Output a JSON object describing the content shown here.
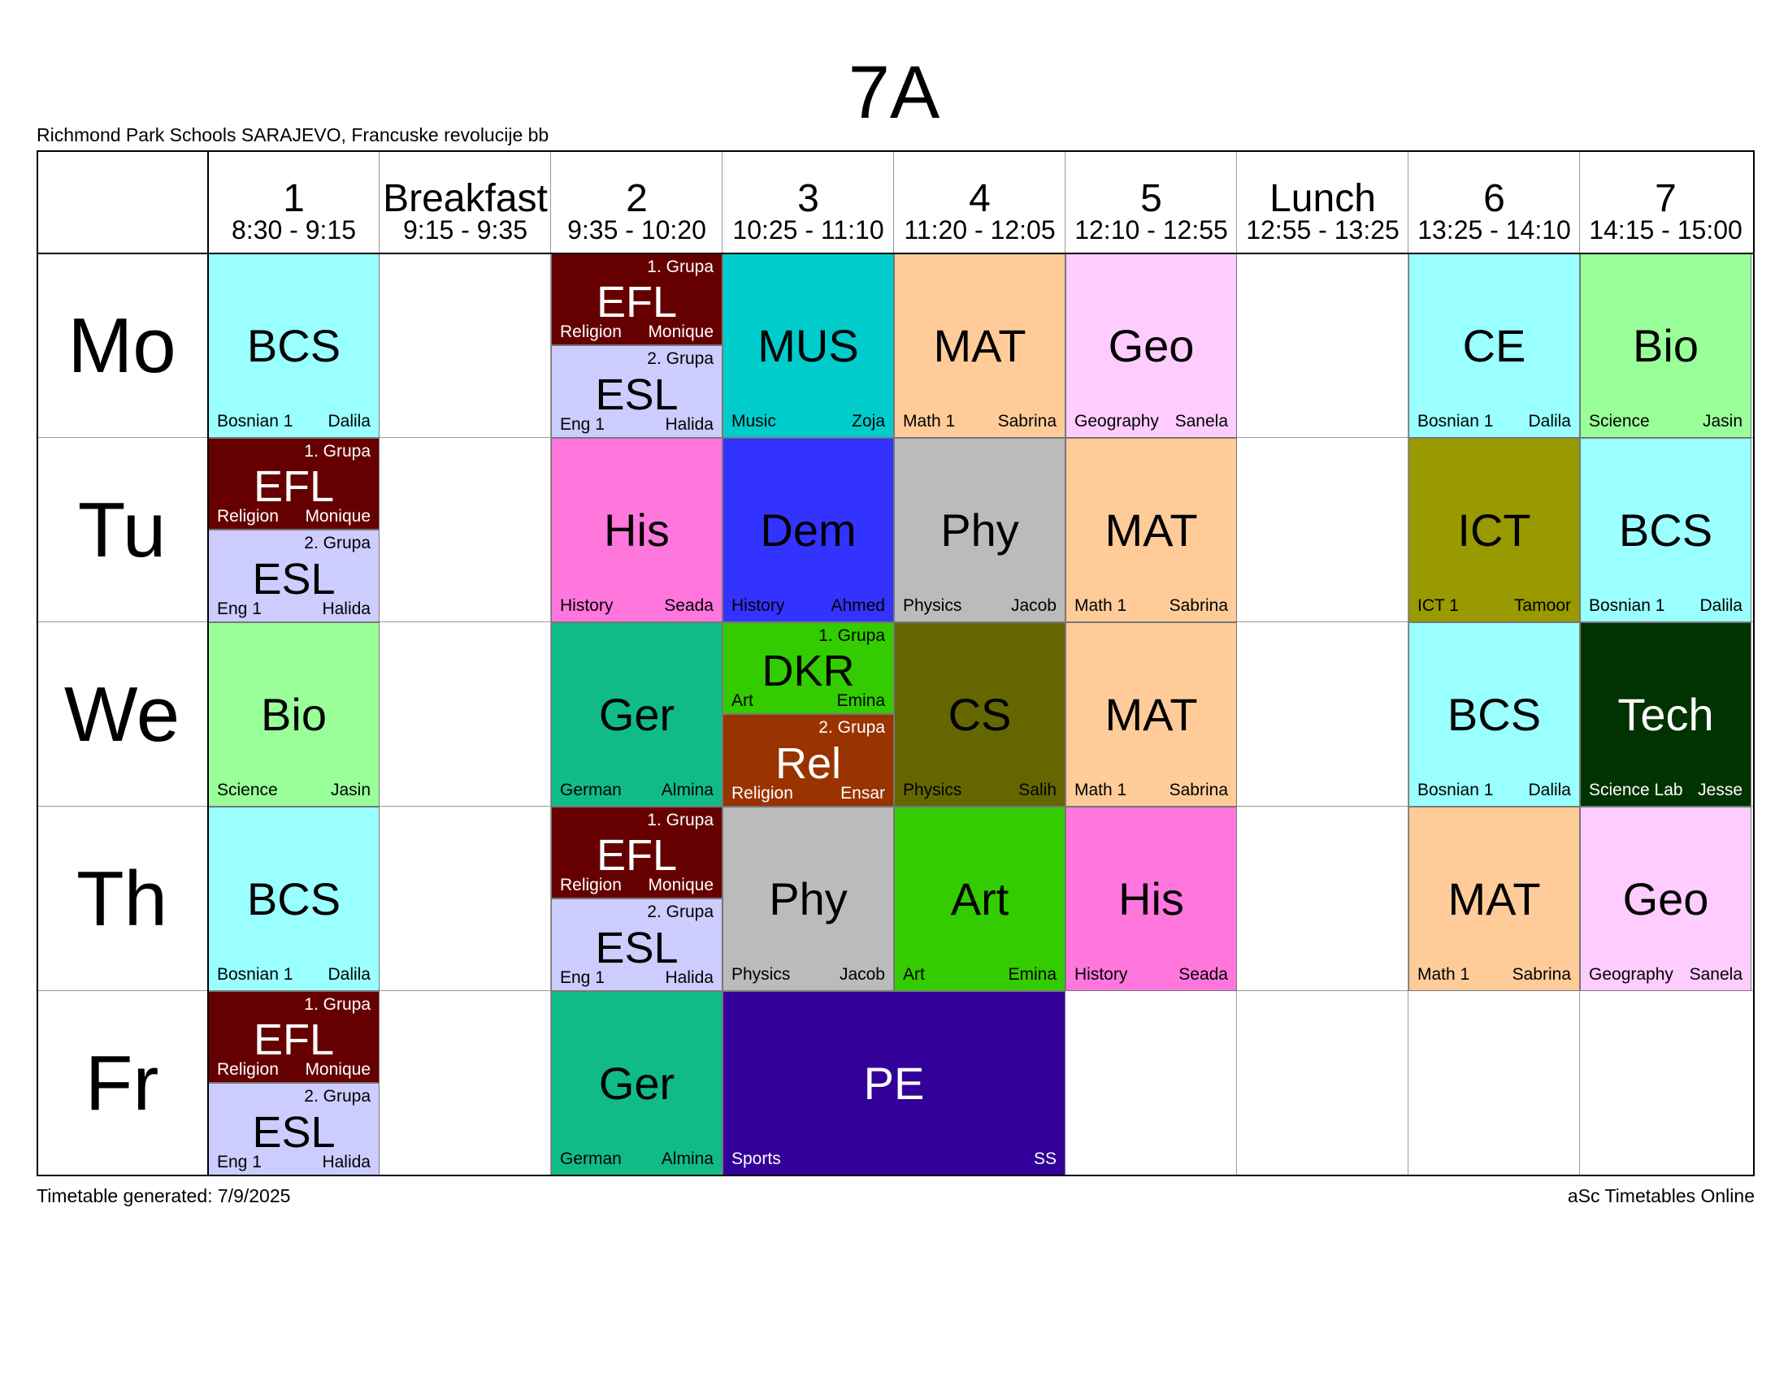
{
  "class_name": "7A",
  "school": "Richmond Park Schools SARAJEVO, Francuske revolucije bb",
  "generated": "Timetable generated: 7/9/2025",
  "brand": "aSc Timetables Online",
  "periods": [
    {
      "label": "1",
      "time": "8:30 - 9:15"
    },
    {
      "label": "Breakfast",
      "time": "9:15 - 9:35"
    },
    {
      "label": "2",
      "time": "9:35 - 10:20"
    },
    {
      "label": "3",
      "time": "10:25 - 11:10"
    },
    {
      "label": "4",
      "time": "11:20 - 12:05"
    },
    {
      "label": "5",
      "time": "12:10 - 12:55"
    },
    {
      "label": "Lunch",
      "time": "12:55 - 13:25"
    },
    {
      "label": "6",
      "time": "13:25 - 14:10"
    },
    {
      "label": "7",
      "time": "14:15 - 15:00"
    }
  ],
  "days": [
    "Mo",
    "Tu",
    "We",
    "Th",
    "Fr"
  ],
  "lessons": [
    {
      "day": 0,
      "col": 0,
      "span": 1,
      "subject": "BCS",
      "room": "Bosnian 1",
      "teacher": "Dalila",
      "color": "#99ffff",
      "text_color": "#000000"
    },
    {
      "day": 0,
      "col": 2,
      "span": 1,
      "part": "top",
      "group": "1. Grupa",
      "subject": "EFL",
      "room": "Religion",
      "teacher": "Monique",
      "color": "#660000",
      "text_color": "#ffffff"
    },
    {
      "day": 0,
      "col": 2,
      "span": 1,
      "part": "bottom",
      "group": "2. Grupa",
      "subject": "ESL",
      "room": "Eng 1",
      "teacher": "Halida",
      "color": "#ccccff",
      "text_color": "#000000"
    },
    {
      "day": 0,
      "col": 3,
      "span": 1,
      "subject": "MUS",
      "room": "Music",
      "teacher": "Zoja",
      "color": "#00cccc",
      "text_color": "#000000"
    },
    {
      "day": 0,
      "col": 4,
      "span": 1,
      "subject": "MAT",
      "room": "Math 1",
      "teacher": "Sabrina",
      "color": "#ffcc99",
      "text_color": "#000000"
    },
    {
      "day": 0,
      "col": 5,
      "span": 1,
      "subject": "Geo",
      "room": "Geography",
      "teacher": "Sanela",
      "color": "#ffccff",
      "text_color": "#000000"
    },
    {
      "day": 0,
      "col": 7,
      "span": 1,
      "subject": "CE",
      "room": "Bosnian 1",
      "teacher": "Dalila",
      "color": "#99ffff",
      "text_color": "#000000"
    },
    {
      "day": 0,
      "col": 8,
      "span": 1,
      "subject": "Bio",
      "room": "Science",
      "teacher": "Jasin",
      "color": "#99ff99",
      "text_color": "#000000"
    },
    {
      "day": 1,
      "col": 0,
      "span": 1,
      "part": "top",
      "group": "1. Grupa",
      "subject": "EFL",
      "room": "Religion",
      "teacher": "Monique",
      "color": "#660000",
      "text_color": "#ffffff"
    },
    {
      "day": 1,
      "col": 0,
      "span": 1,
      "part": "bottom",
      "group": "2. Grupa",
      "subject": "ESL",
      "room": "Eng 1",
      "teacher": "Halida",
      "color": "#ccccff",
      "text_color": "#000000"
    },
    {
      "day": 1,
      "col": 2,
      "span": 1,
      "subject": "His",
      "room": "History",
      "teacher": "Seada",
      "color": "#ff77dd",
      "text_color": "#000000"
    },
    {
      "day": 1,
      "col": 3,
      "span": 1,
      "subject": "Dem",
      "room": "History",
      "teacher": "Ahmed",
      "color": "#3333ff",
      "text_color": "#000000"
    },
    {
      "day": 1,
      "col": 4,
      "span": 1,
      "subject": "Phy",
      "room": "Physics",
      "teacher": "Jacob",
      "color": "#bbbbbb",
      "text_color": "#000000"
    },
    {
      "day": 1,
      "col": 5,
      "span": 1,
      "subject": "MAT",
      "room": "Math 1",
      "teacher": "Sabrina",
      "color": "#ffcc99",
      "text_color": "#000000"
    },
    {
      "day": 1,
      "col": 7,
      "span": 1,
      "subject": "ICT",
      "room": "ICT 1",
      "teacher": "Tamoor",
      "color": "#999900",
      "text_color": "#000000"
    },
    {
      "day": 1,
      "col": 8,
      "span": 1,
      "subject": "BCS",
      "room": "Bosnian 1",
      "teacher": "Dalila",
      "color": "#99ffff",
      "text_color": "#000000"
    },
    {
      "day": 2,
      "col": 0,
      "span": 1,
      "subject": "Bio",
      "room": "Science",
      "teacher": "Jasin",
      "color": "#99ff99",
      "text_color": "#000000"
    },
    {
      "day": 2,
      "col": 2,
      "span": 1,
      "subject": "Ger",
      "room": "German",
      "teacher": "Almina",
      "color": "#11bb88",
      "text_color": "#000000"
    },
    {
      "day": 2,
      "col": 3,
      "span": 1,
      "part": "top",
      "group": "1. Grupa",
      "subject": "DKR",
      "room": "Art",
      "teacher": "Emina",
      "color": "#33cc00",
      "text_color": "#000000"
    },
    {
      "day": 2,
      "col": 3,
      "span": 1,
      "part": "bottom",
      "group": "2. Grupa",
      "subject": "Rel",
      "room": "Religion",
      "teacher": "Ensar",
      "color": "#993300",
      "text_color": "#ffffff"
    },
    {
      "day": 2,
      "col": 4,
      "span": 1,
      "subject": "CS",
      "room": "Physics",
      "teacher": "Salih",
      "color": "#666600",
      "text_color": "#000000"
    },
    {
      "day": 2,
      "col": 5,
      "span": 1,
      "subject": "MAT",
      "room": "Math 1",
      "teacher": "Sabrina",
      "color": "#ffcc99",
      "text_color": "#000000"
    },
    {
      "day": 2,
      "col": 7,
      "span": 1,
      "subject": "BCS",
      "room": "Bosnian 1",
      "teacher": "Dalila",
      "color": "#99ffff",
      "text_color": "#000000"
    },
    {
      "day": 2,
      "col": 8,
      "span": 1,
      "subject": "Tech",
      "room": "Science Lab",
      "teacher": "Jesse",
      "color": "#003300",
      "text_color": "#ffffff"
    },
    {
      "day": 3,
      "col": 0,
      "span": 1,
      "subject": "BCS",
      "room": "Bosnian 1",
      "teacher": "Dalila",
      "color": "#99ffff",
      "text_color": "#000000"
    },
    {
      "day": 3,
      "col": 2,
      "span": 1,
      "part": "top",
      "group": "1. Grupa",
      "subject": "EFL",
      "room": "Religion",
      "teacher": "Monique",
      "color": "#660000",
      "text_color": "#ffffff"
    },
    {
      "day": 3,
      "col": 2,
      "span": 1,
      "part": "bottom",
      "group": "2. Grupa",
      "subject": "ESL",
      "room": "Eng 1",
      "teacher": "Halida",
      "color": "#ccccff",
      "text_color": "#000000"
    },
    {
      "day": 3,
      "col": 3,
      "span": 1,
      "subject": "Phy",
      "room": "Physics",
      "teacher": "Jacob",
      "color": "#bbbbbb",
      "text_color": "#000000"
    },
    {
      "day": 3,
      "col": 4,
      "span": 1,
      "subject": "Art",
      "room": "Art",
      "teacher": "Emina",
      "color": "#33cc00",
      "text_color": "#000000"
    },
    {
      "day": 3,
      "col": 5,
      "span": 1,
      "subject": "His",
      "room": "History",
      "teacher": "Seada",
      "color": "#ff77dd",
      "text_color": "#000000"
    },
    {
      "day": 3,
      "col": 7,
      "span": 1,
      "subject": "MAT",
      "room": "Math 1",
      "teacher": "Sabrina",
      "color": "#ffcc99",
      "text_color": "#000000"
    },
    {
      "day": 3,
      "col": 8,
      "span": 1,
      "subject": "Geo",
      "room": "Geography",
      "teacher": "Sanela",
      "color": "#ffccff",
      "text_color": "#000000"
    },
    {
      "day": 4,
      "col": 0,
      "span": 1,
      "part": "top",
      "group": "1. Grupa",
      "subject": "EFL",
      "room": "Religion",
      "teacher": "Monique",
      "color": "#660000",
      "text_color": "#ffffff"
    },
    {
      "day": 4,
      "col": 0,
      "span": 1,
      "part": "bottom",
      "group": "2. Grupa",
      "subject": "ESL",
      "room": "Eng 1",
      "teacher": "Halida",
      "color": "#ccccff",
      "text_color": "#000000"
    },
    {
      "day": 4,
      "col": 2,
      "span": 1,
      "subject": "Ger",
      "room": "German",
      "teacher": "Almina",
      "color": "#11bb88",
      "text_color": "#000000"
    },
    {
      "day": 4,
      "col": 3,
      "span": 2,
      "subject": "PE",
      "room": "Sports",
      "teacher": "SS",
      "color": "#330099",
      "text_color": "#ffffff"
    }
  ]
}
